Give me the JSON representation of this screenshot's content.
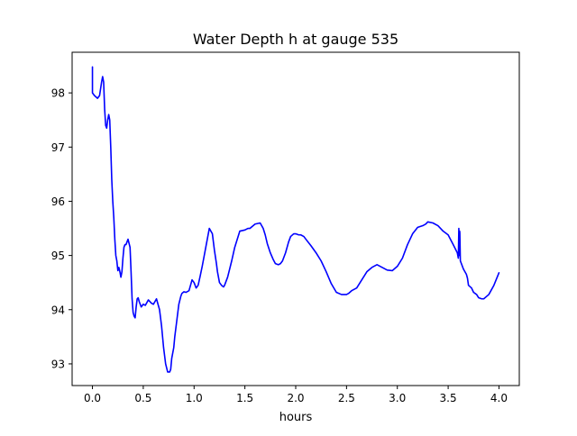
{
  "chart_data": {
    "type": "line",
    "title": "Water Depth h at gauge 535",
    "xlabel": "hours",
    "ylabel": "",
    "xlim": [
      -0.2,
      4.2
    ],
    "ylim": [
      92.6,
      98.75
    ],
    "xticks": [
      0.0,
      0.5,
      1.0,
      1.5,
      2.0,
      2.5,
      3.0,
      3.5,
      4.0
    ],
    "xtick_labels": [
      "0.0",
      "0.5",
      "1.0",
      "1.5",
      "2.0",
      "2.5",
      "3.0",
      "3.5",
      "4.0"
    ],
    "yticks": [
      93,
      94,
      95,
      96,
      97,
      98
    ],
    "ytick_labels": [
      "93",
      "94",
      "95",
      "96",
      "97",
      "98"
    ],
    "grid": false,
    "series": [
      {
        "color": "#0000ff",
        "x": [
          0.0,
          0.0,
          0.02,
          0.05,
          0.07,
          0.09,
          0.1,
          0.11,
          0.12,
          0.13,
          0.14,
          0.15,
          0.16,
          0.17,
          0.18,
          0.19,
          0.2,
          0.21,
          0.22,
          0.23,
          0.24,
          0.25,
          0.26,
          0.27,
          0.28,
          0.29,
          0.3,
          0.31,
          0.32,
          0.33,
          0.35,
          0.37,
          0.38,
          0.39,
          0.4,
          0.41,
          0.42,
          0.43,
          0.44,
          0.45,
          0.46,
          0.47,
          0.48,
          0.5,
          0.52,
          0.55,
          0.58,
          0.6,
          0.63,
          0.66,
          0.68,
          0.7,
          0.72,
          0.74,
          0.76,
          0.77,
          0.78,
          0.8,
          0.81,
          0.83,
          0.85,
          0.87,
          0.88,
          0.9,
          0.92,
          0.95,
          0.98,
          1.0,
          1.02,
          1.04,
          1.06,
          1.08,
          1.1,
          1.12,
          1.15,
          1.18,
          1.2,
          1.22,
          1.23,
          1.25,
          1.27,
          1.29,
          1.3,
          1.33,
          1.35,
          1.37,
          1.4,
          1.45,
          1.5,
          1.53,
          1.55,
          1.6,
          1.65,
          1.68,
          1.7,
          1.72,
          1.75,
          1.78,
          1.8,
          1.83,
          1.85,
          1.87,
          1.9,
          1.93,
          1.95,
          1.98,
          2.0,
          2.03,
          2.05,
          2.08,
          2.1,
          2.15,
          2.2,
          2.25,
          2.3,
          2.35,
          2.4,
          2.45,
          2.5,
          2.52,
          2.55,
          2.6,
          2.65,
          2.7,
          2.75,
          2.8,
          2.85,
          2.9,
          2.95,
          3.0,
          3.05,
          3.1,
          3.15,
          3.2,
          3.25,
          3.28,
          3.3,
          3.35,
          3.4,
          3.45,
          3.5,
          3.55,
          3.59,
          3.6,
          3.605,
          3.61,
          3.613,
          3.615,
          3.62,
          3.65,
          3.68,
          3.69,
          3.7,
          3.73,
          3.75,
          3.78,
          3.8,
          3.83,
          3.85,
          3.9,
          3.95,
          4.0
        ],
        "y": [
          98.48,
          98.0,
          97.95,
          97.9,
          97.95,
          98.2,
          98.3,
          98.2,
          97.7,
          97.4,
          97.35,
          97.5,
          97.6,
          97.5,
          97.0,
          96.4,
          96.0,
          95.7,
          95.3,
          95.0,
          94.9,
          94.72,
          94.78,
          94.7,
          94.6,
          94.7,
          94.95,
          95.15,
          95.2,
          95.2,
          95.3,
          95.15,
          94.7,
          94.2,
          93.95,
          93.88,
          93.85,
          94.05,
          94.2,
          94.22,
          94.15,
          94.1,
          94.05,
          94.1,
          94.08,
          94.18,
          94.12,
          94.1,
          94.2,
          94.0,
          93.7,
          93.3,
          93.0,
          92.85,
          92.85,
          92.9,
          93.1,
          93.3,
          93.5,
          93.8,
          94.1,
          94.25,
          94.3,
          94.33,
          94.32,
          94.35,
          94.55,
          94.5,
          94.4,
          94.45,
          94.62,
          94.8,
          95.0,
          95.2,
          95.5,
          95.4,
          95.1,
          94.85,
          94.7,
          94.5,
          94.45,
          94.42,
          94.45,
          94.6,
          94.75,
          94.9,
          95.15,
          95.45,
          95.47,
          95.5,
          95.5,
          95.58,
          95.6,
          95.5,
          95.38,
          95.22,
          95.05,
          94.92,
          94.85,
          94.83,
          94.85,
          94.9,
          95.05,
          95.25,
          95.35,
          95.4,
          95.4,
          95.38,
          95.38,
          95.35,
          95.3,
          95.18,
          95.05,
          94.9,
          94.7,
          94.48,
          94.32,
          94.28,
          94.28,
          94.3,
          94.35,
          94.4,
          94.55,
          94.7,
          94.78,
          94.83,
          94.78,
          94.73,
          94.72,
          94.8,
          94.95,
          95.2,
          95.4,
          95.52,
          95.55,
          95.58,
          95.62,
          95.6,
          95.55,
          95.45,
          95.38,
          95.2,
          95.05,
          94.95,
          95.5,
          95.0,
          95.45,
          95.42,
          94.9,
          94.75,
          94.65,
          94.58,
          94.45,
          94.4,
          94.32,
          94.28,
          94.22,
          94.2,
          94.2,
          94.28,
          94.45,
          94.68
        ]
      }
    ]
  }
}
